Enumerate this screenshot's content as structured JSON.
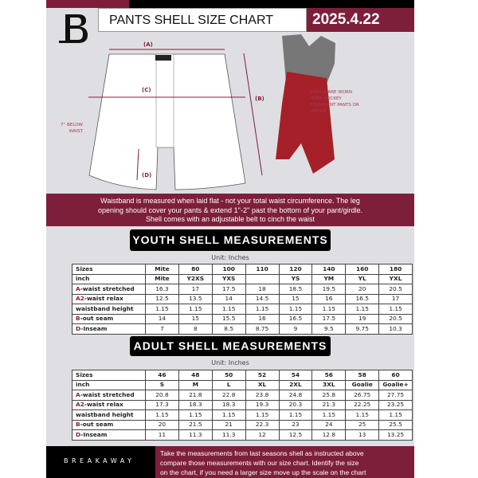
{
  "header": {
    "title": "PANTS SHELL SIZE CHART",
    "date": "2025.4.22"
  },
  "diagram": {
    "labels": {
      "a": "(A)",
      "b": "(B)",
      "c": "(C)",
      "d": "(D)"
    },
    "side_note": "7'' BELOW WAIST",
    "shell_note": "SHELLS ARE WORN OVER HOCKEY EQUIPMENT PANTS OR GIRDLE"
  },
  "info_band": [
    "Waistband is measured when laid flat - not your total waist circumference. The leg",
    "opening should cover your pants & extend 1''-2'' past the bottom of your pant/girdle.",
    "Shell comes with an adjustable belt to cinch the waist"
  ],
  "youth": {
    "title": "YOUTH SHELL MEASUREMENTS",
    "unit": "Unit: Inches",
    "rows": [
      {
        "prefix": "",
        "label": "Sizes",
        "values": [
          "Mite",
          "80",
          "100",
          "110",
          "120",
          "140",
          "160",
          "180"
        ]
      },
      {
        "prefix": "",
        "label": "inch",
        "values": [
          "Mite",
          "Y2XS",
          "YXS",
          "",
          "YS",
          "YM",
          "YL",
          "YXL"
        ]
      },
      {
        "prefix": "A",
        "label": "-waist stretched",
        "values": [
          "16.3",
          "17",
          "17.5",
          "18",
          "18.5",
          "19.5",
          "20",
          "20.5"
        ]
      },
      {
        "prefix": "A2",
        "label": "-waist relax",
        "values": [
          "12.5",
          "13.5",
          "14",
          "14.5",
          "15",
          "16",
          "16.5",
          "17"
        ]
      },
      {
        "prefix": "",
        "label": "waistband height",
        "values": [
          "1.15",
          "1.15",
          "1.15",
          "1.15",
          "1.15",
          "1.15",
          "1.15",
          "1.15"
        ]
      },
      {
        "prefix": "B",
        "label": "-out seam",
        "values": [
          "14",
          "15",
          "15.5",
          "16",
          "16.5",
          "17.5",
          "19",
          "20.5"
        ]
      },
      {
        "prefix": "D",
        "label": "-Inseam",
        "values": [
          "7",
          "8",
          "8.5",
          "8.75",
          "9",
          "9.5",
          "9.75",
          "10.3"
        ]
      }
    ]
  },
  "adult": {
    "title": "ADULT SHELL MEASUREMENTS",
    "unit": "Unit: Inches",
    "rows": [
      {
        "prefix": "",
        "label": "Sizes",
        "values": [
          "46",
          "48",
          "50",
          "52",
          "54",
          "56",
          "58",
          "60"
        ]
      },
      {
        "prefix": "",
        "label": "inch",
        "values": [
          "S",
          "M",
          "L",
          "XL",
          "2XL",
          "3XL",
          "Goalie",
          "Goalie+"
        ]
      },
      {
        "prefix": "A",
        "label": "-waist stretched",
        "values": [
          "20.8",
          "21.8",
          "22.8",
          "23.8",
          "24.8",
          "25.8",
          "26.75",
          "27.75"
        ]
      },
      {
        "prefix": "A2",
        "label": "-waist relax",
        "values": [
          "17.3",
          "18.3",
          "18.3",
          "19.3",
          "20.3",
          "21.3",
          "22.25",
          "23.25"
        ]
      },
      {
        "prefix": "",
        "label": "waistband height",
        "values": [
          "1.15",
          "1.15",
          "1.15",
          "1.15",
          "1.15",
          "1.15",
          "1.15",
          "1.15"
        ]
      },
      {
        "prefix": "B",
        "label": "-out seam",
        "values": [
          "20",
          "21.5",
          "21",
          "22.3",
          "23",
          "24",
          "25",
          "25.5"
        ]
      },
      {
        "prefix": "D",
        "label": "-Inseam",
        "values": [
          "11",
          "11.3",
          "11.3",
          "12",
          "12.5",
          "12.8",
          "13",
          "13.25"
        ]
      }
    ]
  },
  "footer": {
    "brand": "BREAKAWAY",
    "lines": [
      "Take the measurements from last seasons shell as instructed above",
      "compare those measurements  with our size chart. Identify the size",
      "on the chart, if you need a larger size move up the scale on the chart"
    ]
  },
  "colors": {
    "accent": "#7d1f3a",
    "background": "#dfdfe3"
  }
}
